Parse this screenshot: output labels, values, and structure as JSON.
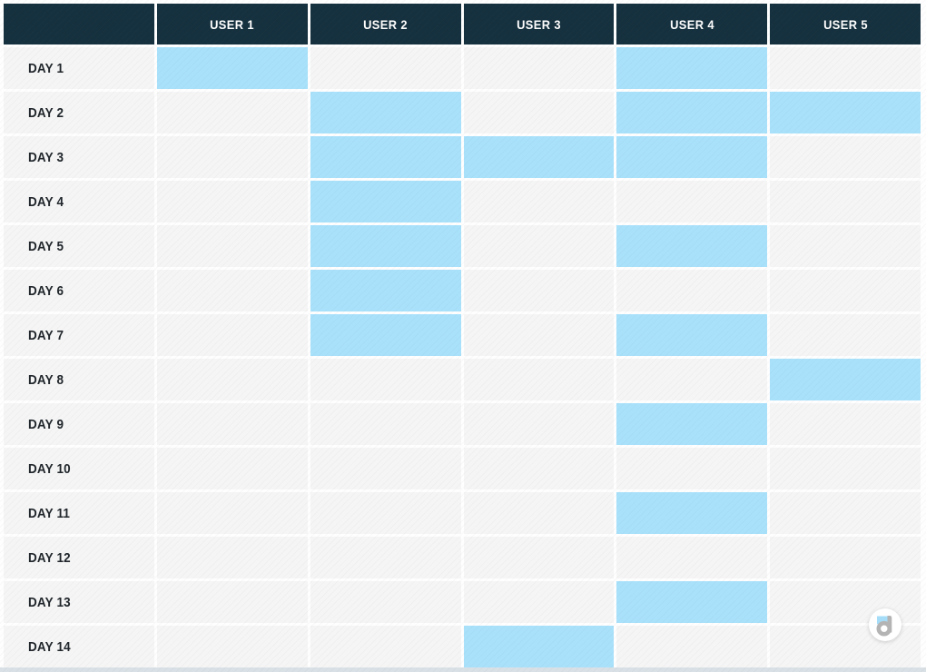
{
  "colors": {
    "page_bg": "#fefefe",
    "header_bg": "#15303e",
    "header_text": "#ffffff",
    "cell_bg": "#f5f5f5",
    "highlight": "#a9e1fb",
    "row_label_text": "#20262b",
    "bottom_strip": "#d9e1e6",
    "logo_gray": "#b4b4b4",
    "logo_blue": "#a5ddf8"
  },
  "header": {
    "corner_label": "",
    "columns": [
      "USER 1",
      "USER 2",
      "USER 3",
      "USER 4",
      "USER 5"
    ]
  },
  "rows": [
    {
      "label": "DAY 1",
      "availability": [
        true,
        false,
        false,
        true,
        false
      ]
    },
    {
      "label": "DAY 2",
      "availability": [
        false,
        true,
        false,
        true,
        true
      ]
    },
    {
      "label": "DAY 3",
      "availability": [
        false,
        true,
        true,
        true,
        false
      ]
    },
    {
      "label": "DAY 4",
      "availability": [
        false,
        true,
        false,
        false,
        false
      ]
    },
    {
      "label": "DAY 5",
      "availability": [
        false,
        true,
        false,
        true,
        false
      ]
    },
    {
      "label": "DAY 6",
      "availability": [
        false,
        true,
        false,
        false,
        false
      ]
    },
    {
      "label": "DAY 7",
      "availability": [
        false,
        true,
        false,
        true,
        false
      ]
    },
    {
      "label": "DAY 8",
      "availability": [
        false,
        false,
        false,
        false,
        true
      ]
    },
    {
      "label": "DAY 9",
      "availability": [
        false,
        false,
        false,
        true,
        false
      ]
    },
    {
      "label": "DAY 10",
      "availability": [
        false,
        false,
        false,
        false,
        false
      ]
    },
    {
      "label": "DAY 11",
      "availability": [
        false,
        false,
        false,
        true,
        false
      ]
    },
    {
      "label": "DAY 12",
      "availability": [
        false,
        false,
        false,
        false,
        false
      ]
    },
    {
      "label": "DAY 13",
      "availability": [
        false,
        false,
        false,
        true,
        false
      ]
    },
    {
      "label": "DAY 14",
      "availability": [
        false,
        false,
        true,
        false,
        false
      ]
    }
  ],
  "logo": {
    "icon": "doodle-d-logo"
  }
}
